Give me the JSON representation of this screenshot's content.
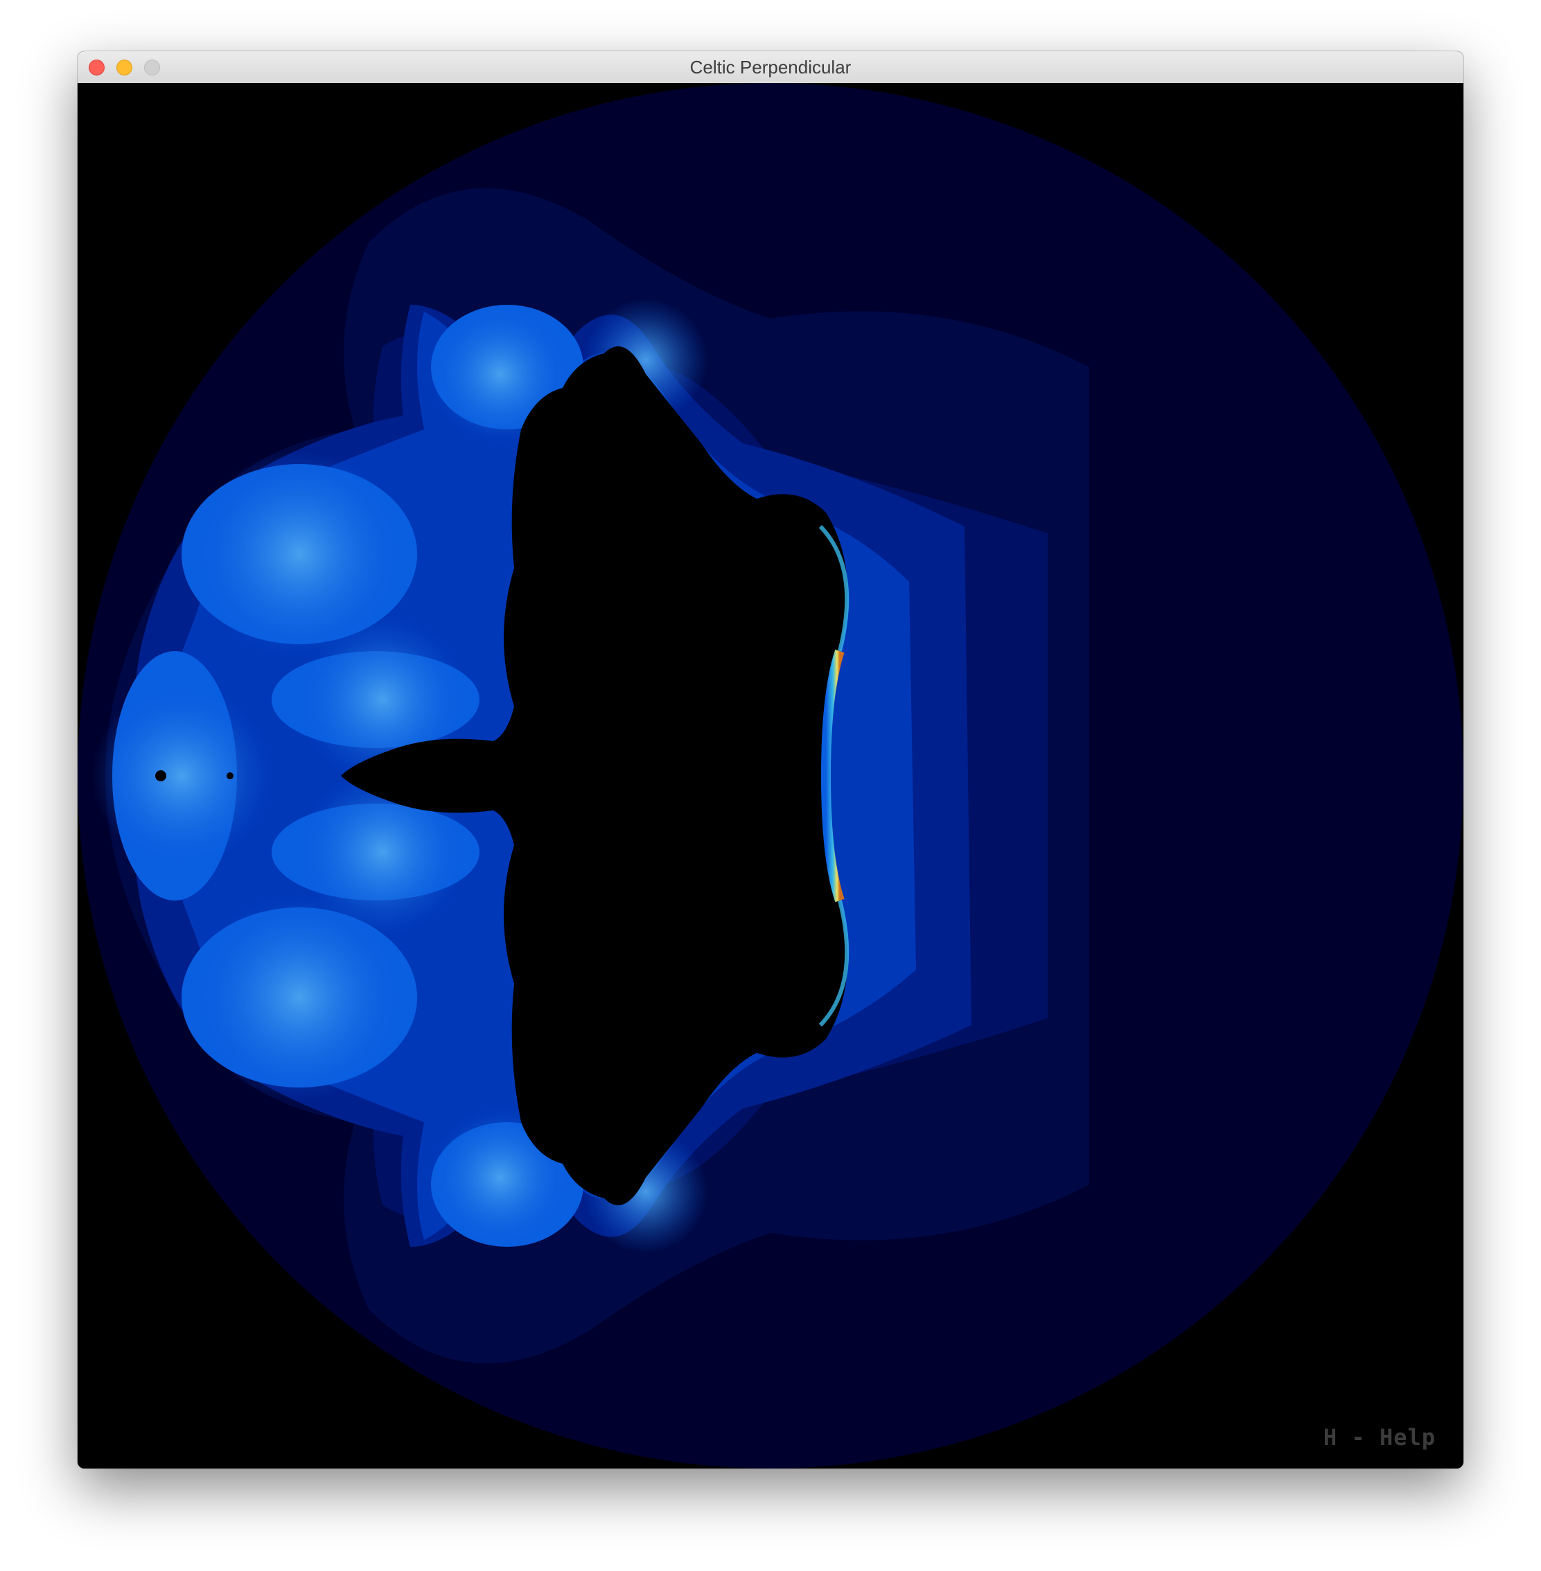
{
  "window": {
    "title": "Celtic Perpendicular"
  },
  "canvas": {
    "help_hint": "H - Help",
    "colors": {
      "background": "#000000",
      "outer_band": "#00002e",
      "band_2": "#000845",
      "band_3": "#001064",
      "band_4": "#00208e",
      "band_5": "#0038b8",
      "band_6": "#0a5ee0",
      "edge_cyan": "#38b8e8",
      "edge_yellow": "#e8e060",
      "edge_orange": "#d07020",
      "interior": "#000000"
    }
  }
}
